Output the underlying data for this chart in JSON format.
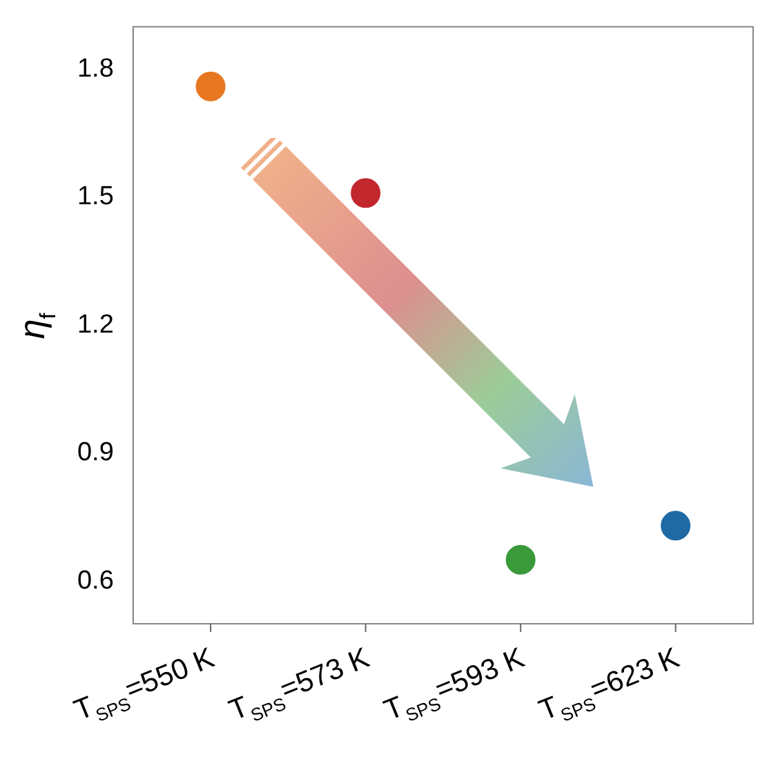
{
  "chart_data": {
    "type": "scatter",
    "ylabel": "η$_{f}$",
    "categories": [
      "T$_{SPS}$=550 K",
      "T$_{SPS}$=573 K",
      "T$_{SPS}$=593 K",
      "T$_{SPS}$=623 K"
    ],
    "values": [
      1.76,
      1.51,
      0.65,
      0.73
    ],
    "colors": [
      "#e87722",
      "#c1272d",
      "#3a9a3a",
      "#1f6aa5"
    ],
    "ylim": [
      0.5,
      1.9
    ],
    "yticks": [
      0.6,
      0.9,
      1.2,
      1.5,
      1.8
    ],
    "marker": "circle"
  }
}
